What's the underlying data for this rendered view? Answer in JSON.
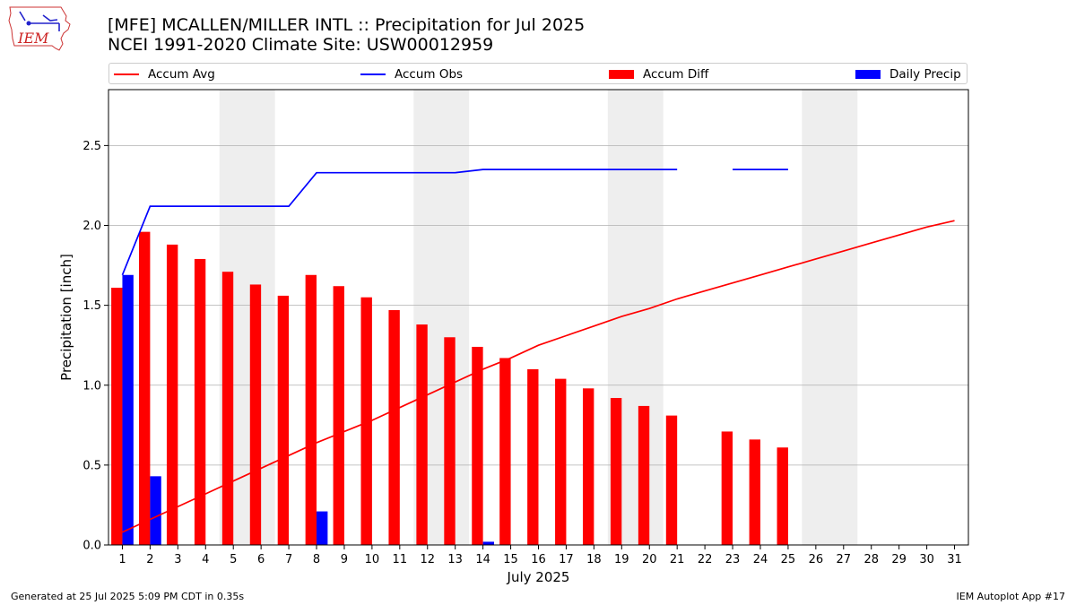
{
  "header": {
    "logo_text": "IEM",
    "title_line1": "[MFE] MCALLEN/MILLER INTL :: Precipitation for Jul 2025",
    "title_line2": "NCEI 1991-2020 Climate Site: USW00012959"
  },
  "legend": {
    "placement": "top, above plot",
    "items": [
      {
        "label": "Accum Avg",
        "kind": "line",
        "color": "#ff0000"
      },
      {
        "label": "Accum Obs",
        "kind": "line",
        "color": "#0000ff"
      },
      {
        "label": "Accum Diff",
        "kind": "patch",
        "color": "#ff0000"
      },
      {
        "label": "Daily Precip",
        "kind": "patch",
        "color": "#0000ff"
      }
    ]
  },
  "footer": {
    "left": "Generated at 25 Jul 2025 5:09 PM CDT in 0.35s",
    "right": "IEM Autoplot App #17"
  },
  "chart_data": {
    "type": "bar",
    "xlabel": "July 2025",
    "ylabel": "Precipitation [inch]",
    "xlim": [
      0.5,
      31.5
    ],
    "ylim": [
      0,
      2.85
    ],
    "yticks": [
      0.0,
      0.5,
      1.0,
      1.5,
      2.0,
      2.5
    ],
    "ytick_labels": [
      "0.0",
      "0.5",
      "1.0",
      "1.5",
      "2.0",
      "2.5"
    ],
    "grid": "horizontal",
    "categories": [
      "1",
      "2",
      "3",
      "4",
      "5",
      "6",
      "7",
      "8",
      "9",
      "10",
      "11",
      "12",
      "13",
      "14",
      "15",
      "16",
      "17",
      "18",
      "19",
      "20",
      "21",
      "22",
      "23",
      "24",
      "25",
      "26",
      "27",
      "28",
      "29",
      "30",
      "31"
    ],
    "weekend_shading": [
      [
        4.5,
        6.5
      ],
      [
        11.5,
        13.5
      ],
      [
        18.5,
        20.5
      ],
      [
        25.5,
        27.5
      ]
    ],
    "colors": {
      "avg": "#ff0000",
      "obs": "#0000ff",
      "diff": "#ff0000",
      "daily": "#0000ff",
      "shade": "#eeeeee",
      "grid": "#b0b0b0"
    },
    "series": [
      {
        "name": "Accum Diff",
        "kind": "bar",
        "values": [
          1.61,
          1.96,
          1.88,
          1.79,
          1.71,
          1.63,
          1.56,
          1.69,
          1.62,
          1.55,
          1.47,
          1.38,
          1.3,
          1.24,
          1.17,
          1.1,
          1.04,
          0.98,
          0.92,
          0.87,
          0.81,
          null,
          0.71,
          0.66,
          0.61,
          null,
          null,
          null,
          null,
          null,
          null
        ]
      },
      {
        "name": "Daily Precip",
        "kind": "bar",
        "values": [
          1.69,
          0.43,
          0,
          0,
          0,
          0,
          0,
          0.21,
          0,
          0,
          0,
          0,
          0,
          0.02,
          0,
          0,
          0,
          0,
          0,
          0,
          0,
          null,
          0,
          0,
          0,
          null,
          null,
          null,
          null,
          null,
          null
        ]
      },
      {
        "name": "Accum Avg",
        "kind": "line",
        "values": [
          0.08,
          0.16,
          0.24,
          0.32,
          0.4,
          0.48,
          0.56,
          0.64,
          0.71,
          0.78,
          0.86,
          0.94,
          1.02,
          1.1,
          1.17,
          1.25,
          1.31,
          1.37,
          1.43,
          1.48,
          1.54,
          1.59,
          1.64,
          1.69,
          1.74,
          1.79,
          1.84,
          1.89,
          1.94,
          1.99,
          2.03
        ]
      },
      {
        "name": "Accum Obs",
        "kind": "line",
        "values": [
          1.69,
          2.12,
          2.12,
          2.12,
          2.12,
          2.12,
          2.12,
          2.33,
          2.33,
          2.33,
          2.33,
          2.33,
          2.33,
          2.35,
          2.35,
          2.35,
          2.35,
          2.35,
          2.35,
          2.35,
          2.35,
          null,
          2.35,
          2.35,
          2.35,
          null,
          null,
          null,
          null,
          null,
          null
        ]
      }
    ]
  }
}
